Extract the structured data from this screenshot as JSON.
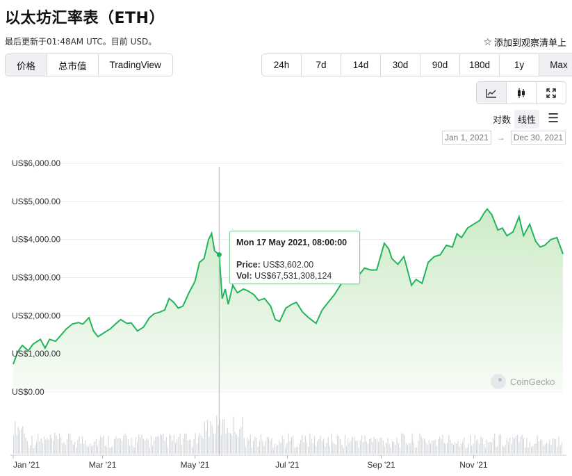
{
  "header": {
    "title": "以太坊汇率表（ETH）",
    "updated": "最后更新于01:48AM UTC。目前 USD。",
    "watchlist_label": "添加到观察清单上"
  },
  "view_tabs": [
    {
      "label": "价格",
      "active": true
    },
    {
      "label": "总市值",
      "active": false
    },
    {
      "label": "TradingView",
      "active": false
    }
  ],
  "ranges": [
    {
      "label": "24h",
      "active": false
    },
    {
      "label": "7d",
      "active": false
    },
    {
      "label": "14d",
      "active": false
    },
    {
      "label": "30d",
      "active": false
    },
    {
      "label": "90d",
      "active": false
    },
    {
      "label": "180d",
      "active": false
    },
    {
      "label": "1y",
      "active": false
    },
    {
      "label": "Max",
      "active": true
    }
  ],
  "chart_types": [
    {
      "icon": "line-chart-icon",
      "active": true
    },
    {
      "icon": "candlestick-icon",
      "active": false
    },
    {
      "icon": "expand-icon",
      "active": false
    }
  ],
  "scale": {
    "log_label": "对数",
    "linear_label": "线性",
    "active": "linear"
  },
  "date_range": {
    "from": "Jan 1, 2021",
    "arrow": "→",
    "to": "Dec 30, 2021"
  },
  "tooltip": {
    "date": "Mon 17 May 2021, 08:00:00",
    "price_label": "Price:",
    "price_value": "US$3,602.00",
    "vol_label": "Vol:",
    "vol_value": "US$67,531,308,124"
  },
  "brand": "CoinGecko",
  "colors": {
    "line": "#22b45a",
    "area_top": "#cdebc8",
    "area_bottom": "#f7fcf6",
    "volume": "#d4d7db",
    "grid": "#e9ecef"
  },
  "chart_data": {
    "type": "area",
    "ylim": [
      0,
      6000
    ],
    "y_ticks": [
      {
        "value": 0,
        "label": "US$0.00"
      },
      {
        "value": 1000,
        "label": "US$1,000.00"
      },
      {
        "value": 2000,
        "label": "US$2,000.00"
      },
      {
        "value": 3000,
        "label": "US$3,000.00"
      },
      {
        "value": 4000,
        "label": "US$4,000.00"
      },
      {
        "value": 5000,
        "label": "US$5,000.00"
      },
      {
        "value": 6000,
        "label": "US$6,000.00"
      }
    ],
    "x_range": [
      "2021-01-01",
      "2021-12-30"
    ],
    "x_ticks": [
      {
        "date": "2021-01-01",
        "label": "Jan '21"
      },
      {
        "date": "2021-03-01",
        "label": "Mar '21"
      },
      {
        "date": "2021-05-01",
        "label": "May '21"
      },
      {
        "date": "2021-07-01",
        "label": "Jul '21"
      },
      {
        "date": "2021-09-01",
        "label": "Sep '21"
      },
      {
        "date": "2021-11-01",
        "label": "Nov '21"
      }
    ],
    "grid": true,
    "crosshair_date": "2021-05-17",
    "series": [
      {
        "values": [
          [
            "2021-01-01",
            730
          ],
          [
            "2021-01-04",
            1050
          ],
          [
            "2021-01-07",
            1220
          ],
          [
            "2021-01-11",
            1080
          ],
          [
            "2021-01-14",
            1250
          ],
          [
            "2021-01-19",
            1380
          ],
          [
            "2021-01-22",
            1150
          ],
          [
            "2021-01-25",
            1380
          ],
          [
            "2021-01-29",
            1330
          ],
          [
            "2021-02-02",
            1510
          ],
          [
            "2021-02-05",
            1650
          ],
          [
            "2021-02-09",
            1780
          ],
          [
            "2021-02-13",
            1820
          ],
          [
            "2021-02-16",
            1780
          ],
          [
            "2021-02-20",
            1950
          ],
          [
            "2021-02-23",
            1600
          ],
          [
            "2021-02-26",
            1450
          ],
          [
            "2021-03-03",
            1580
          ],
          [
            "2021-03-06",
            1650
          ],
          [
            "2021-03-10",
            1800
          ],
          [
            "2021-03-13",
            1900
          ],
          [
            "2021-03-17",
            1800
          ],
          [
            "2021-03-20",
            1810
          ],
          [
            "2021-03-24",
            1600
          ],
          [
            "2021-03-28",
            1700
          ],
          [
            "2021-04-01",
            1950
          ],
          [
            "2021-04-04",
            2050
          ],
          [
            "2021-04-08",
            2100
          ],
          [
            "2021-04-11",
            2150
          ],
          [
            "2021-04-14",
            2450
          ],
          [
            "2021-04-17",
            2350
          ],
          [
            "2021-04-20",
            2200
          ],
          [
            "2021-04-23",
            2250
          ],
          [
            "2021-04-27",
            2600
          ],
          [
            "2021-05-01",
            2900
          ],
          [
            "2021-05-04",
            3400
          ],
          [
            "2021-05-07",
            3500
          ],
          [
            "2021-05-10",
            4000
          ],
          [
            "2021-05-12",
            4160
          ],
          [
            "2021-05-14",
            3700
          ],
          [
            "2021-05-17",
            3602
          ],
          [
            "2021-05-19",
            2450
          ],
          [
            "2021-05-21",
            2700
          ],
          [
            "2021-05-23",
            2300
          ],
          [
            "2021-05-26",
            2800
          ],
          [
            "2021-05-29",
            2600
          ],
          [
            "2021-06-02",
            2700
          ],
          [
            "2021-06-05",
            2650
          ],
          [
            "2021-06-09",
            2550
          ],
          [
            "2021-06-12",
            2400
          ],
          [
            "2021-06-16",
            2450
          ],
          [
            "2021-06-20",
            2250
          ],
          [
            "2021-06-23",
            1900
          ],
          [
            "2021-06-26",
            1850
          ],
          [
            "2021-06-30",
            2200
          ],
          [
            "2021-07-04",
            2300
          ],
          [
            "2021-07-07",
            2350
          ],
          [
            "2021-07-11",
            2100
          ],
          [
            "2021-07-15",
            1950
          ],
          [
            "2021-07-20",
            1800
          ],
          [
            "2021-07-24",
            2150
          ],
          [
            "2021-07-28",
            2350
          ],
          [
            "2021-08-01",
            2550
          ],
          [
            "2021-08-05",
            2800
          ],
          [
            "2021-08-09",
            3100
          ],
          [
            "2021-08-13",
            3250
          ],
          [
            "2021-08-17",
            3050
          ],
          [
            "2021-08-21",
            3250
          ],
          [
            "2021-08-25",
            3200
          ],
          [
            "2021-08-29",
            3200
          ],
          [
            "2021-09-03",
            3900
          ],
          [
            "2021-09-06",
            3750
          ],
          [
            "2021-09-08",
            3500
          ],
          [
            "2021-09-12",
            3350
          ],
          [
            "2021-09-16",
            3550
          ],
          [
            "2021-09-21",
            2800
          ],
          [
            "2021-09-24",
            2950
          ],
          [
            "2021-09-28",
            2850
          ],
          [
            "2021-10-02",
            3400
          ],
          [
            "2021-10-06",
            3550
          ],
          [
            "2021-10-10",
            3600
          ],
          [
            "2021-10-14",
            3850
          ],
          [
            "2021-10-18",
            3800
          ],
          [
            "2021-10-21",
            4150
          ],
          [
            "2021-10-24",
            4050
          ],
          [
            "2021-10-28",
            4300
          ],
          [
            "2021-11-01",
            4400
          ],
          [
            "2021-11-05",
            4500
          ],
          [
            "2021-11-08",
            4700
          ],
          [
            "2021-11-10",
            4800
          ],
          [
            "2021-11-13",
            4650
          ],
          [
            "2021-11-17",
            4250
          ],
          [
            "2021-11-20",
            4300
          ],
          [
            "2021-11-23",
            4100
          ],
          [
            "2021-11-27",
            4200
          ],
          [
            "2021-12-01",
            4600
          ],
          [
            "2021-12-04",
            4100
          ],
          [
            "2021-12-08",
            4400
          ],
          [
            "2021-12-12",
            3950
          ],
          [
            "2021-12-15",
            3800
          ],
          [
            "2021-12-18",
            3850
          ],
          [
            "2021-12-22",
            4000
          ],
          [
            "2021-12-26",
            4050
          ],
          [
            "2021-12-30",
            3620
          ]
        ]
      }
    ]
  }
}
